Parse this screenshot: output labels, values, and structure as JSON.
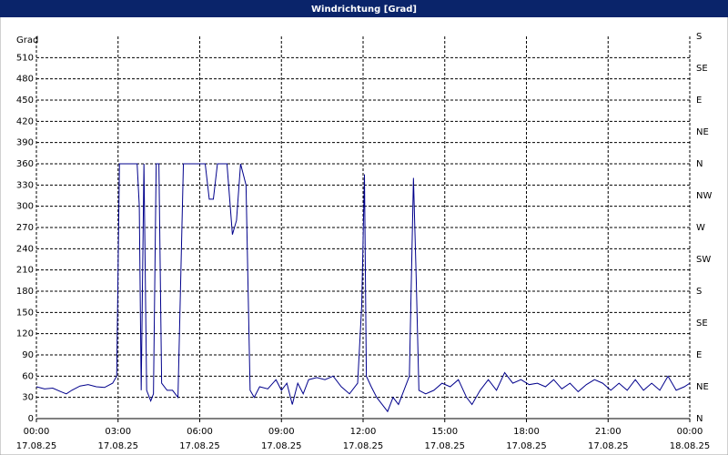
{
  "chart_data": {
    "type": "line",
    "title": "Windrichtung [Grad]",
    "y_label": "Grad",
    "xlim": [
      0,
      24
    ],
    "ylim": [
      0,
      540
    ],
    "y2lim": [
      0,
      540
    ],
    "xticks": [
      {
        "value": 0,
        "label": "00:00",
        "date": "17.08.25"
      },
      {
        "value": 3,
        "label": "03:00",
        "date": "17.08.25"
      },
      {
        "value": 6,
        "label": "06:00",
        "date": "17.08.25"
      },
      {
        "value": 9,
        "label": "09:00",
        "date": "17.08.25"
      },
      {
        "value": 12,
        "label": "12:00",
        "date": "17.08.25"
      },
      {
        "value": 15,
        "label": "15:00",
        "date": "17.08.25"
      },
      {
        "value": 18,
        "label": "18:00",
        "date": "17.08.25"
      },
      {
        "value": 21,
        "label": "21:00",
        "date": "17.08.25"
      },
      {
        "value": 24,
        "label": "00:00",
        "date": "18.08.25"
      }
    ],
    "yticks": [
      0,
      30,
      60,
      90,
      120,
      150,
      180,
      210,
      240,
      270,
      300,
      330,
      360,
      390,
      420,
      450,
      480,
      510
    ],
    "y2ticks": [
      {
        "value": 0,
        "label": "N"
      },
      {
        "value": 45,
        "label": "NE"
      },
      {
        "value": 90,
        "label": "E"
      },
      {
        "value": 135,
        "label": "SE"
      },
      {
        "value": 180,
        "label": "S"
      },
      {
        "value": 225,
        "label": "SW"
      },
      {
        "value": 270,
        "label": "W"
      },
      {
        "value": 315,
        "label": "NW"
      },
      {
        "value": 360,
        "label": "N"
      },
      {
        "value": 405,
        "label": "NE"
      },
      {
        "value": 450,
        "label": "E"
      },
      {
        "value": 495,
        "label": "SE"
      },
      {
        "value": 540,
        "label": "S"
      }
    ],
    "grid": true,
    "x": [
      0,
      0.3,
      0.6,
      0.9,
      1.1,
      1.3,
      1.6,
      1.9,
      2.2,
      2.5,
      2.8,
      2.95,
      3.05,
      3.7,
      3.78,
      3.85,
      3.95,
      4.05,
      4.2,
      4.3,
      4.4,
      4.5,
      4.6,
      4.8,
      5.0,
      5.2,
      5.4,
      6.2,
      6.35,
      6.5,
      6.65,
      7.0,
      7.2,
      7.35,
      7.5,
      7.7,
      7.85,
      8.0,
      8.2,
      8.5,
      8.8,
      9.0,
      9.2,
      9.4,
      9.6,
      9.8,
      10.0,
      10.3,
      10.6,
      10.9,
      11.2,
      11.5,
      11.8,
      11.95,
      12.05,
      12.12,
      12.3,
      12.5,
      12.7,
      12.9,
      13.1,
      13.3,
      13.5,
      13.7,
      13.85,
      13.95,
      14.05,
      14.3,
      14.6,
      14.9,
      15.2,
      15.5,
      15.8,
      16.0,
      16.3,
      16.6,
      16.9,
      17.2,
      17.5,
      17.8,
      18.1,
      18.4,
      18.7,
      19.0,
      19.3,
      19.6,
      19.9,
      20.2,
      20.5,
      20.8,
      21.1,
      21.4,
      21.7,
      22.0,
      22.3,
      22.6,
      22.9,
      23.2,
      23.5,
      23.8,
      24
    ],
    "series": [
      {
        "name": "Windrichtung",
        "color": "#00008b",
        "values": [
          45,
          42,
          43,
          38,
          35,
          40,
          46,
          48,
          45,
          44,
          50,
          60,
          360,
          360,
          300,
          40,
          360,
          40,
          25,
          35,
          360,
          360,
          50,
          40,
          40,
          30,
          360,
          360,
          310,
          310,
          360,
          360,
          260,
          280,
          360,
          330,
          40,
          30,
          45,
          42,
          55,
          40,
          50,
          20,
          50,
          35,
          55,
          58,
          55,
          60,
          45,
          35,
          50,
          160,
          345,
          60,
          45,
          30,
          20,
          10,
          30,
          20,
          40,
          60,
          340,
          200,
          40,
          35,
          40,
          50,
          45,
          55,
          30,
          20,
          40,
          55,
          40,
          65,
          50,
          55,
          48,
          50,
          45,
          55,
          42,
          50,
          38,
          48,
          55,
          50,
          40,
          50,
          40,
          55,
          40,
          50,
          40,
          60,
          40,
          45,
          50
        ]
      }
    ]
  }
}
